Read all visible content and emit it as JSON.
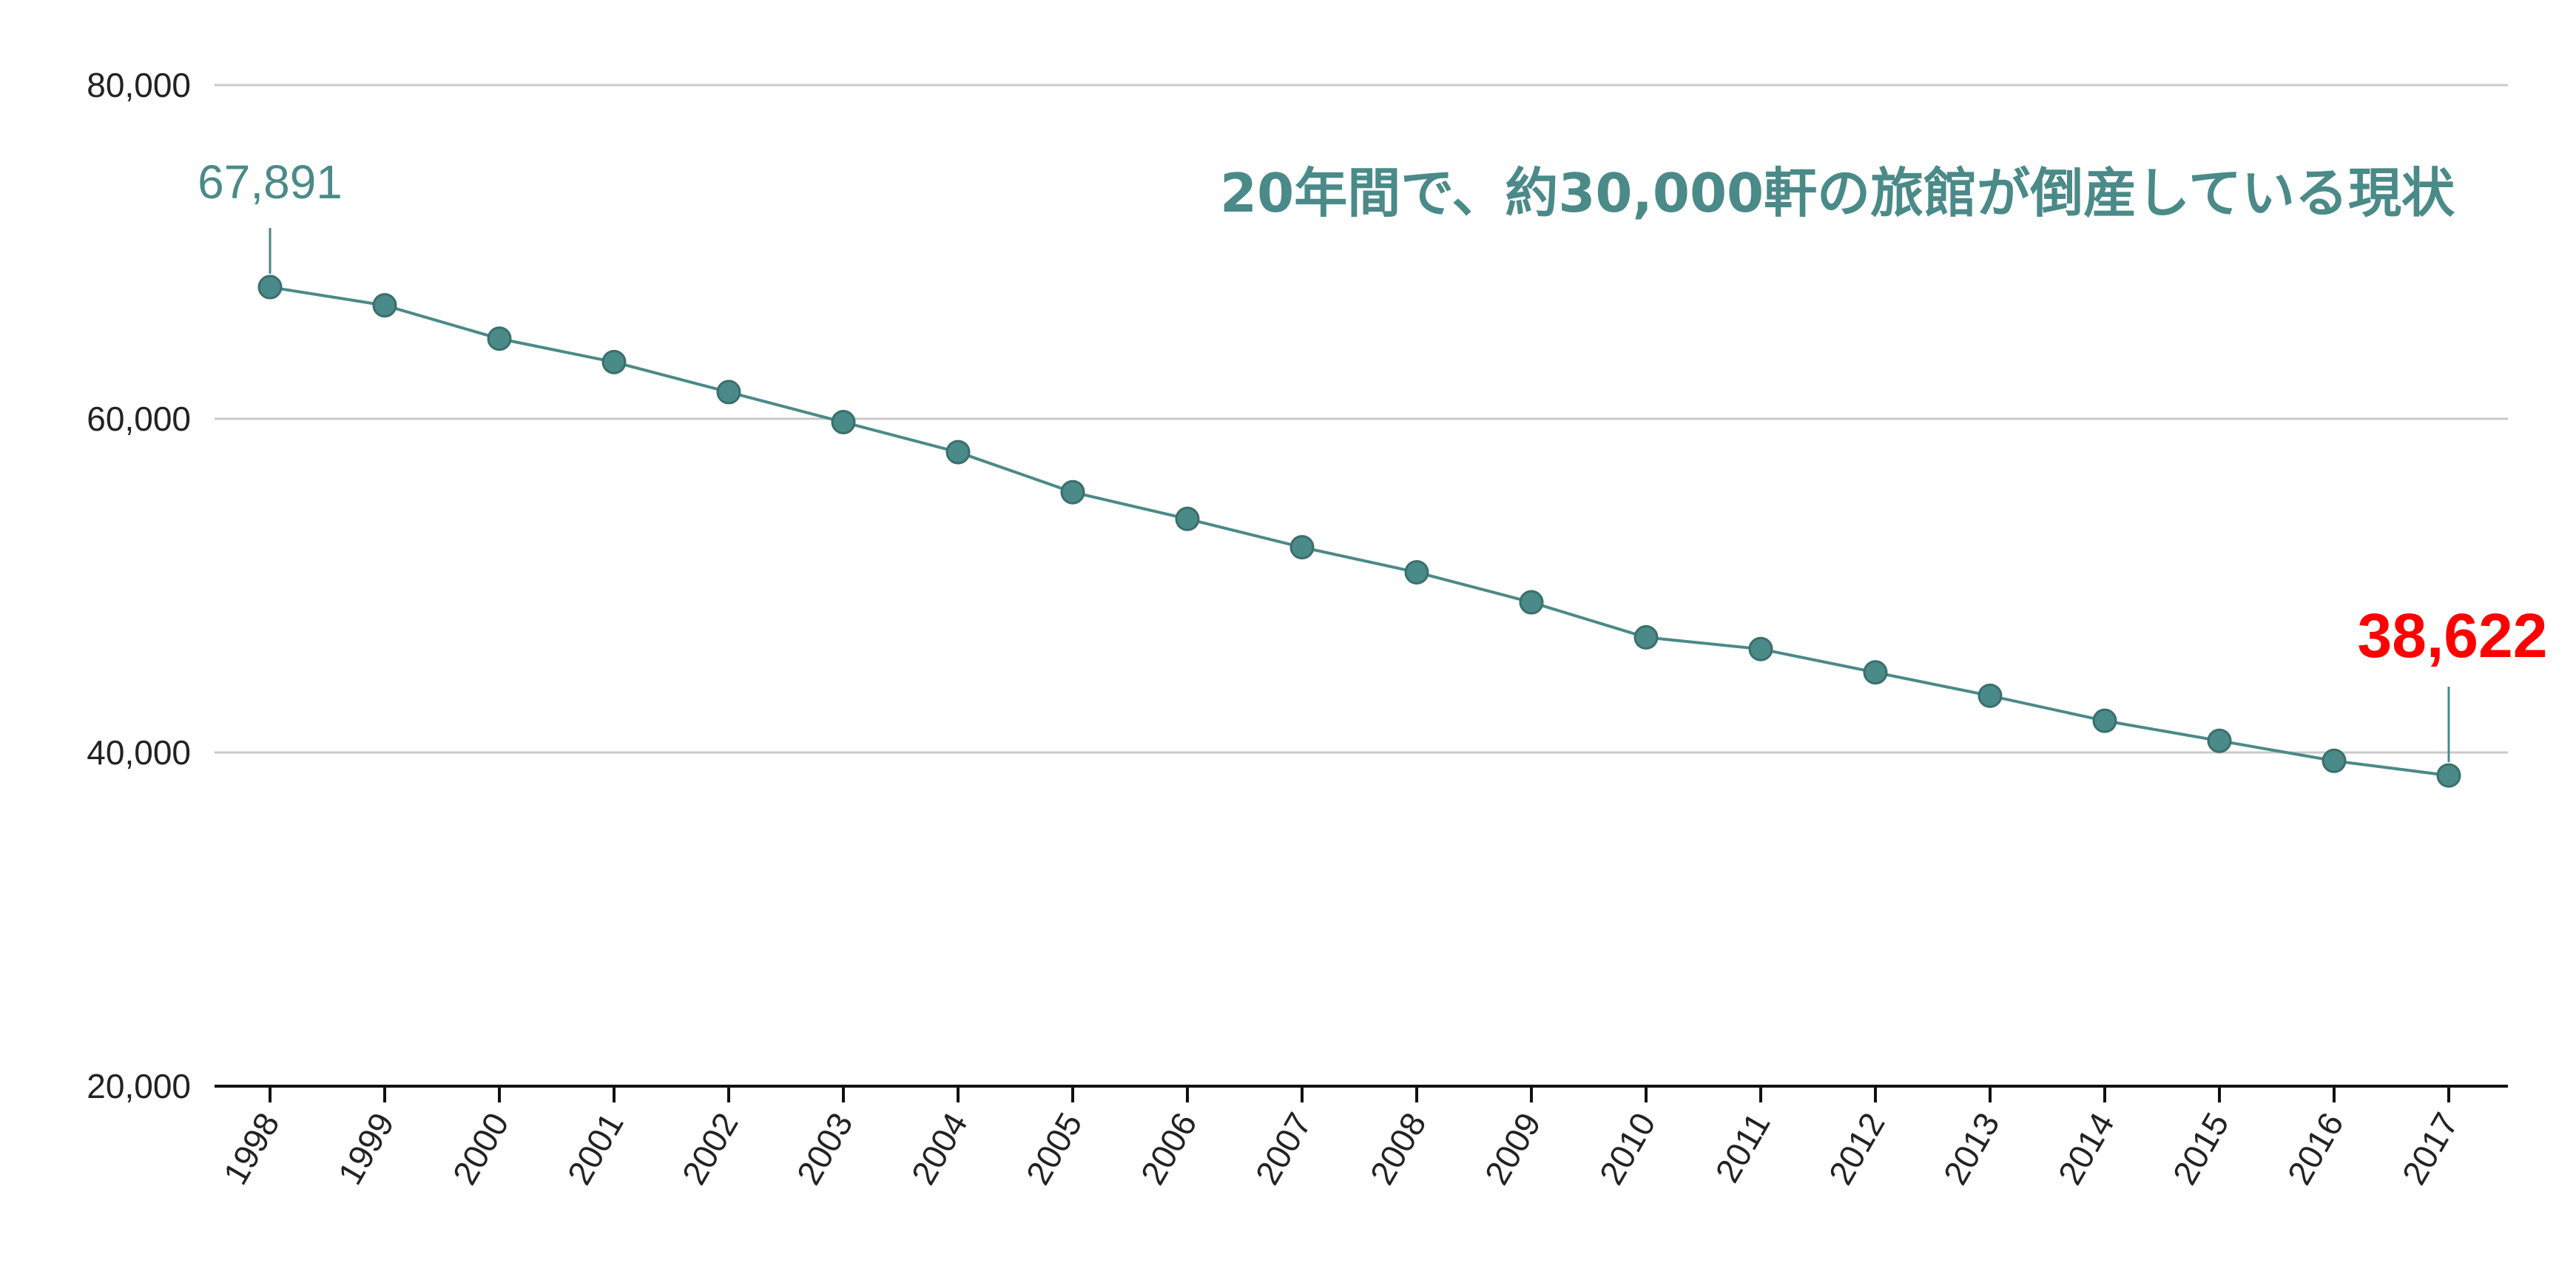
{
  "colors": {
    "series": "#4a8a88",
    "highlight": "#ff0000",
    "grid": "#c9c9c9",
    "axis": "#111111",
    "text": "#222222"
  },
  "chart_data": {
    "type": "line",
    "title": "20年間で、約30,000軒の旅館が倒産している現状",
    "x": [
      "1998",
      "1999",
      "2000",
      "2001",
      "2002",
      "2003",
      "2004",
      "2005",
      "2006",
      "2007",
      "2008",
      "2009",
      "2010",
      "2011",
      "2012",
      "2013",
      "2014",
      "2015",
      "2016",
      "2017"
    ],
    "series": [
      {
        "values": [
          67891,
          66800,
          64800,
          63400,
          61600,
          59800,
          58000,
          55600,
          54000,
          52300,
          50800,
          49000,
          46900,
          46200,
          44800,
          43400,
          41900,
          40700,
          39500,
          38622
        ]
      }
    ],
    "ylim": [
      20000,
      80000
    ],
    "yticks": [
      20000,
      40000,
      60000,
      80000
    ],
    "ytick_labels": [
      "20,000",
      "40,000",
      "60,000",
      "80,000"
    ],
    "grid": true,
    "annotations": [
      {
        "x": "1998",
        "text": "67,891",
        "color": "#4a8a88"
      },
      {
        "x": "2017",
        "text": "38,622",
        "color": "#ff0000"
      }
    ]
  }
}
